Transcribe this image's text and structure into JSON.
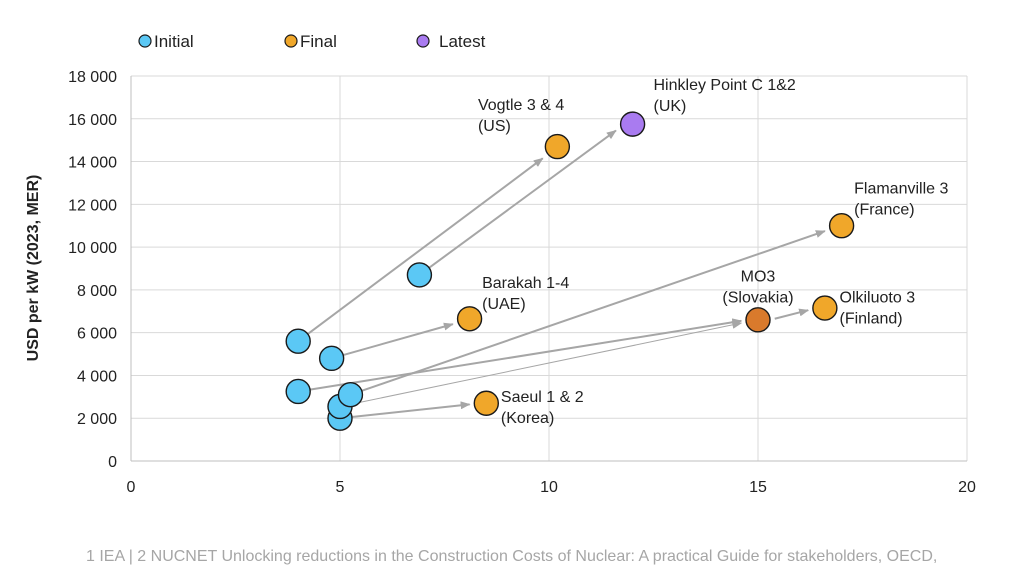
{
  "chart_data": {
    "type": "scatter",
    "ylabel": "USD per kW (2023, MER)",
    "xlabel": "",
    "xlim": [
      0,
      20
    ],
    "ylim": [
      0,
      18000
    ],
    "xticks": [
      0,
      5,
      10,
      15,
      20
    ],
    "yticks": [
      0,
      2000,
      4000,
      6000,
      8000,
      10000,
      12000,
      14000,
      16000,
      18000
    ],
    "ytick_labels": [
      "0",
      "2 000",
      "4 000",
      "6 000",
      "8 000",
      "10 000",
      "12 000",
      "14 000",
      "16 000",
      "18 000"
    ],
    "grid": true,
    "legend_position": "top-left",
    "series": [
      {
        "name": "Initial",
        "color": "#5bc8f5",
        "points": [
          {
            "x": 4.0,
            "y": 5600
          },
          {
            "x": 4.0,
            "y": 3250
          },
          {
            "x": 4.8,
            "y": 4800
          },
          {
            "x": 5.0,
            "y": 2000
          },
          {
            "x": 5.0,
            "y": 2550
          },
          {
            "x": 5.25,
            "y": 3100
          },
          {
            "x": 6.9,
            "y": 8700
          }
        ]
      },
      {
        "name": "Final",
        "color": "#f0a72a",
        "points": [
          {
            "x": 10.2,
            "y": 14700
          },
          {
            "x": 8.1,
            "y": 6650
          },
          {
            "x": 8.5,
            "y": 2700
          },
          {
            "x": 17.0,
            "y": 11000
          },
          {
            "x": 16.6,
            "y": 7150
          },
          {
            "x": 15.0,
            "y": 6600
          }
        ]
      },
      {
        "name": "Latest",
        "color": "#a97bf0",
        "points": [
          {
            "x": 12.0,
            "y": 15750
          }
        ]
      }
    ],
    "arrows": [
      {
        "from": [
          4.0,
          5600
        ],
        "to": [
          9.85,
          14150
        ],
        "width": 2
      },
      {
        "from": [
          6.9,
          8700
        ],
        "to": [
          11.6,
          15450
        ],
        "width": 2
      },
      {
        "from": [
          4.8,
          4800
        ],
        "to": [
          7.7,
          6400
        ],
        "width": 2
      },
      {
        "from": [
          5.25,
          3100
        ],
        "to": [
          16.6,
          10750
        ],
        "width": 2
      },
      {
        "from": [
          4.0,
          3250
        ],
        "to": [
          14.6,
          6550
        ],
        "width": 2
      },
      {
        "from": [
          5.0,
          2550
        ],
        "to": [
          14.6,
          6450
        ],
        "width": 1
      },
      {
        "from": [
          15.4,
          6650
        ],
        "to": [
          16.2,
          7050
        ],
        "width": 2
      },
      {
        "from": [
          5.0,
          2000
        ],
        "to": [
          8.1,
          2650
        ],
        "width": 2
      }
    ],
    "annotations": [
      {
        "lines": [
          "Vogtle 3 & 4",
          "(US)"
        ],
        "x": 8.3,
        "y": 16400,
        "anchor": "start"
      },
      {
        "lines": [
          "Hinkley Point C 1&2",
          "(UK)"
        ],
        "x": 12.5,
        "y": 17350,
        "anchor": "start"
      },
      {
        "lines": [
          "Flamanville 3",
          "(France)"
        ],
        "x": 17.3,
        "y": 12500,
        "anchor": "start"
      },
      {
        "lines": [
          "Barakah 1-4",
          "(UAE)"
        ],
        "x": 8.4,
        "y": 8100,
        "anchor": "start"
      },
      {
        "lines": [
          "MO3",
          "(Slovakia)"
        ],
        "x": 15.0,
        "y": 8400,
        "anchor": "middle"
      },
      {
        "lines": [
          "Olkiluoto 3",
          "(Finland)"
        ],
        "x": 16.95,
        "y": 7400,
        "anchor": "start"
      },
      {
        "lines": [
          "Saeul 1 & 2",
          "(Korea)"
        ],
        "x": 8.85,
        "y": 2750,
        "anchor": "start"
      }
    ]
  },
  "footnote": "1 IEA | 2 NUCNET Unlocking reductions in the Construction Costs of Nuclear: A practical Guide for stakeholders, OECD,"
}
